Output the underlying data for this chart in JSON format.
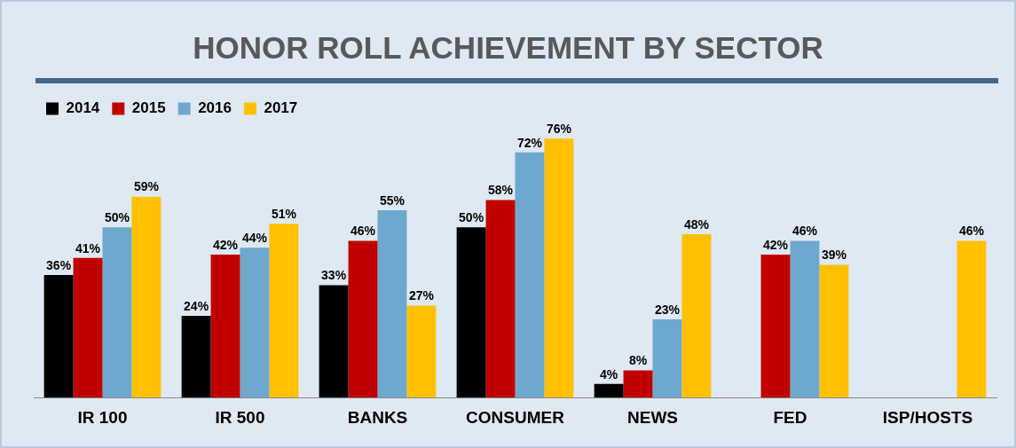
{
  "chart_data": {
    "type": "bar",
    "title": "HONOR ROLL ACHIEVEMENT BY SECTOR",
    "categories": [
      "IR 100",
      "IR 500",
      "BANKS",
      "CONSUMER",
      "NEWS",
      "FED",
      "ISP/HOSTS"
    ],
    "series": [
      {
        "name": "2014",
        "color": "#000000",
        "values": [
          36,
          24,
          33,
          50,
          4,
          null,
          null
        ],
        "value_labels": [
          "36%",
          "24%",
          "33%",
          "50%",
          "4%",
          null,
          null
        ]
      },
      {
        "name": "2015",
        "color": "#c00000",
        "values": [
          41,
          42,
          46,
          58,
          8,
          42,
          null
        ],
        "value_labels": [
          "41%",
          "42%",
          "46%",
          "58%",
          "8%",
          "42%",
          null
        ]
      },
      {
        "name": "2016",
        "color": "#6fa8cf",
        "values": [
          50,
          44,
          55,
          72,
          23,
          46,
          null
        ],
        "value_labels": [
          "50%",
          "44%",
          "55%",
          "72%",
          "23%",
          "46%",
          null
        ]
      },
      {
        "name": "2017",
        "color": "#ffc000",
        "values": [
          59,
          51,
          27,
          76,
          48,
          39,
          46
        ],
        "value_labels": [
          "59%",
          "51%",
          "27%",
          "76%",
          "48%",
          "39%",
          "46%"
        ]
      }
    ],
    "legend": "top left",
    "grid": false
  }
}
